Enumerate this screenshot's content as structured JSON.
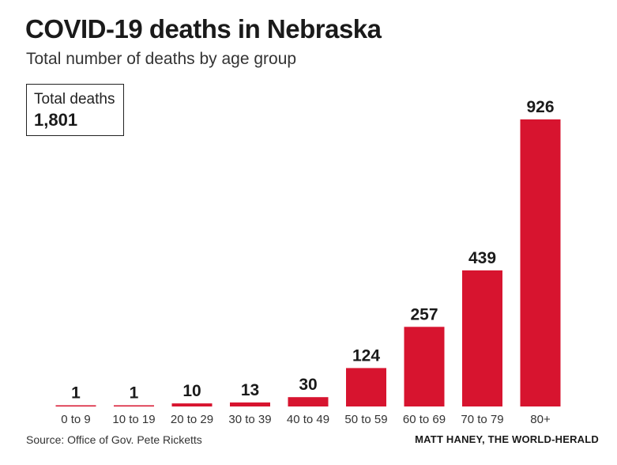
{
  "header": {
    "title": "COVID-19 deaths in Nebraska",
    "subtitle": "Total number of deaths by age group"
  },
  "total_box": {
    "label": "Total deaths",
    "value": "1,801"
  },
  "footer": {
    "source": "Source: Office of Gov. Pete Ricketts",
    "credit": "MATT HANEY, THE WORLD-HERALD"
  },
  "chart_data": {
    "type": "bar",
    "title": "COVID-19 deaths in Nebraska",
    "subtitle": "Total number of deaths by age group",
    "xlabel": "",
    "ylabel": "",
    "categories": [
      "0 to 9",
      "10 to 19",
      "20 to 29",
      "30 to 39",
      "40 to 49",
      "50 to 59",
      "60 to 69",
      "70 to 79",
      "80+"
    ],
    "values": [
      1,
      1,
      10,
      13,
      30,
      124,
      257,
      439,
      926
    ],
    "data_labels": [
      "1",
      "1",
      "10",
      "13",
      "30",
      "124",
      "257",
      "439",
      "926"
    ],
    "ylim": [
      0,
      926
    ],
    "grid": false,
    "bar_color": "#d7142f"
  }
}
